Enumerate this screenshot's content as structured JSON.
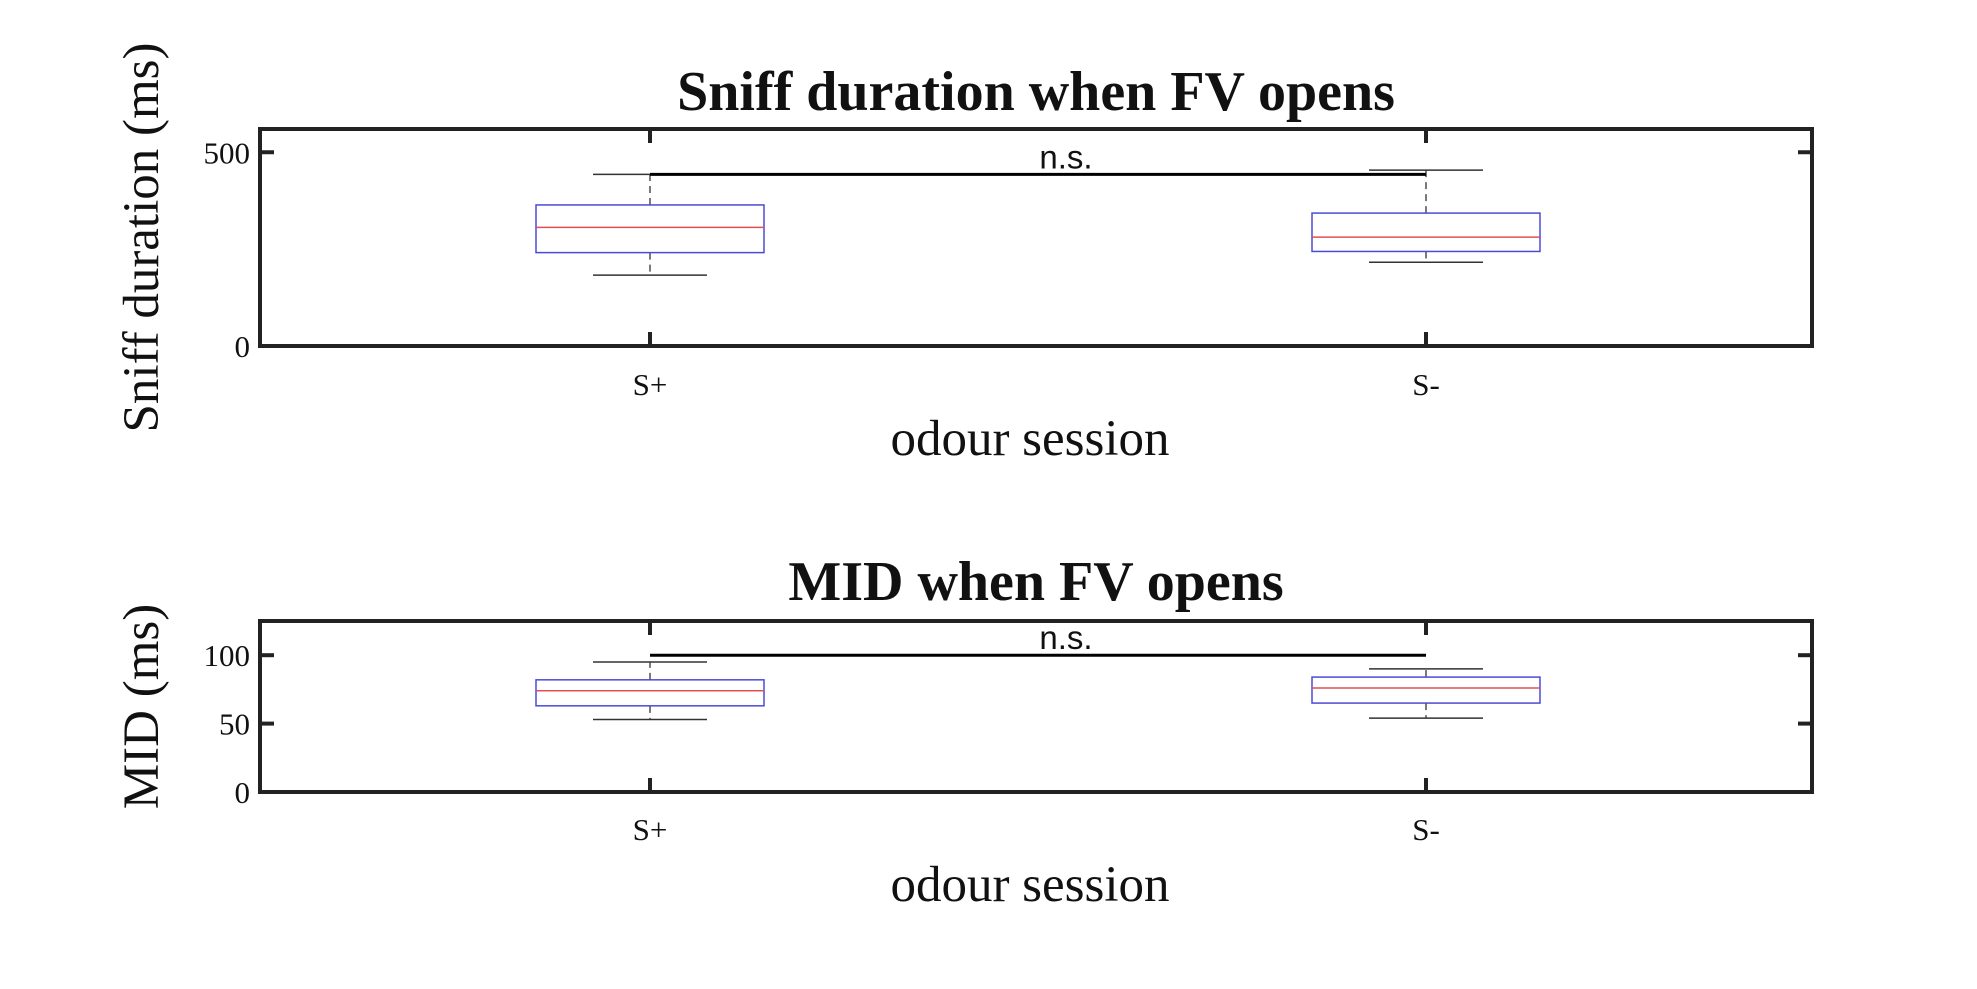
{
  "chart_data": [
    {
      "type": "box",
      "title": "Sniff duration when FV opens",
      "xlabel": "odour session",
      "ylabel": "Sniff duration (ms)",
      "categories": [
        "S+",
        "S-"
      ],
      "ylim": [
        0,
        560
      ],
      "yticks": [
        0,
        500
      ],
      "boxes": [
        {
          "category": "S+",
          "whisker_low": 183,
          "q1": 241,
          "median": 306,
          "q3": 364,
          "whisker_high": 443
        },
        {
          "category": "S-",
          "whisker_low": 216,
          "q1": 244,
          "median": 281,
          "q3": 343,
          "whisker_high": 454
        }
      ],
      "significance": {
        "label": "n.s.",
        "from": "S+",
        "to": "S-",
        "y": 443
      }
    },
    {
      "type": "box",
      "title": "MID when FV opens",
      "xlabel": "odour session",
      "ylabel": "MID (ms)",
      "categories": [
        "S+",
        "S-"
      ],
      "ylim": [
        0,
        125
      ],
      "yticks": [
        0,
        50,
        100
      ],
      "boxes": [
        {
          "category": "S+",
          "whisker_low": 53,
          "q1": 63,
          "median": 74,
          "q3": 82,
          "whisker_high": 95
        },
        {
          "category": "S-",
          "whisker_low": 54,
          "q1": 65,
          "median": 76,
          "q3": 84,
          "whisker_high": 90
        }
      ],
      "significance": {
        "label": "n.s.",
        "from": "S+",
        "to": "S-",
        "y": 100
      }
    }
  ],
  "colors": {
    "box": "#4b4bd6",
    "median": "#e05050",
    "whisker": "#333333",
    "axis": "#222222",
    "significance": "#000000"
  }
}
